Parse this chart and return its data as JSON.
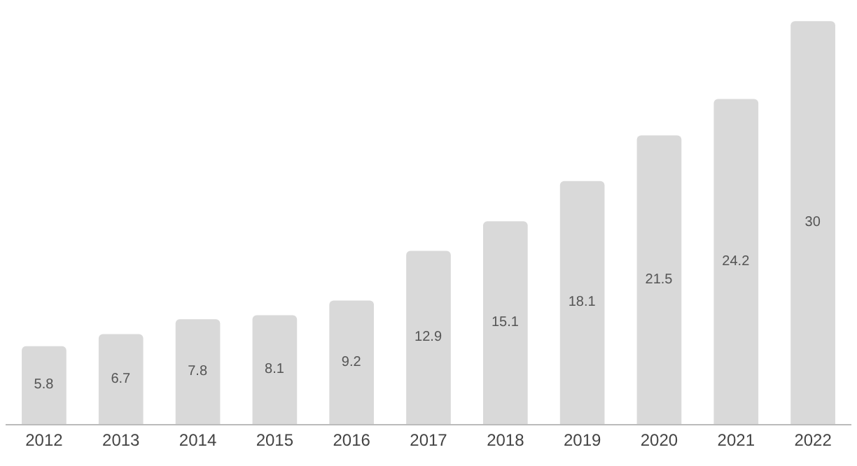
{
  "chart_data": {
    "type": "bar",
    "categories": [
      "2012",
      "2013",
      "2014",
      "2015",
      "2016",
      "2017",
      "2018",
      "2019",
      "2020",
      "2021",
      "2022"
    ],
    "values": [
      5.8,
      6.7,
      7.8,
      8.1,
      9.2,
      12.9,
      15.1,
      18.1,
      21.5,
      24.2,
      30
    ],
    "color": "#d9d9d9",
    "data_labels": true
  }
}
